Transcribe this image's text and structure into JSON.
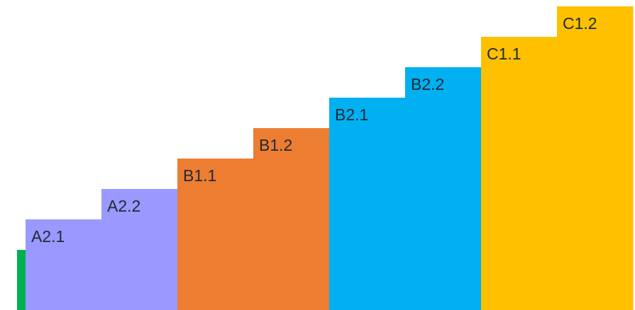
{
  "diagram": {
    "type": "staircase",
    "steps": [
      {
        "label": "",
        "level": 2,
        "color": "#00b050"
      },
      {
        "label": "A2.1",
        "level": 3,
        "color": "#9999ff"
      },
      {
        "label": "A2.2",
        "level": 4,
        "color": "#9999ff"
      },
      {
        "label": "B1.1",
        "level": 5,
        "color": "#ed7d31"
      },
      {
        "label": "B1.2",
        "level": 6,
        "color": "#ed7d31"
      },
      {
        "label": "B2.1",
        "level": 7,
        "color": "#00b0f0"
      },
      {
        "label": "B2.2",
        "level": 8,
        "color": "#00b0f0"
      },
      {
        "label": "C1.1",
        "level": 9,
        "color": "#ffc000"
      },
      {
        "label": "C1.2",
        "level": 10,
        "color": "#ffc000"
      }
    ]
  }
}
